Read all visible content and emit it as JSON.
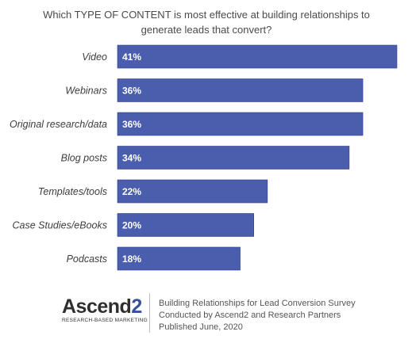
{
  "title": {
    "line1": "Which TYPE OF CONTENT is most effective at building relationships to",
    "line2": "generate leads that convert?"
  },
  "chart_data": {
    "type": "bar",
    "orientation": "horizontal",
    "categories": [
      "Video",
      "Webinars",
      "Original research/data",
      "Blog posts",
      "Templates/tools",
      "Case Studies/eBooks",
      "Podcasts"
    ],
    "values": [
      41,
      36,
      36,
      34,
      22,
      20,
      18
    ],
    "value_labels": [
      "41%",
      "36%",
      "36%",
      "34%",
      "22%",
      "20%",
      "18%"
    ],
    "bar_color": "#4b5eae",
    "grid": false,
    "legend": "none"
  },
  "footer": {
    "logo": {
      "word": "Ascend",
      "digit": "2",
      "tagline": "RESEARCH-BASED MARKETING"
    },
    "lines": [
      "Building Relationships for Lead Conversion Survey",
      "Conducted by Ascend2 and Research Partners",
      "Published June, 2020"
    ]
  }
}
